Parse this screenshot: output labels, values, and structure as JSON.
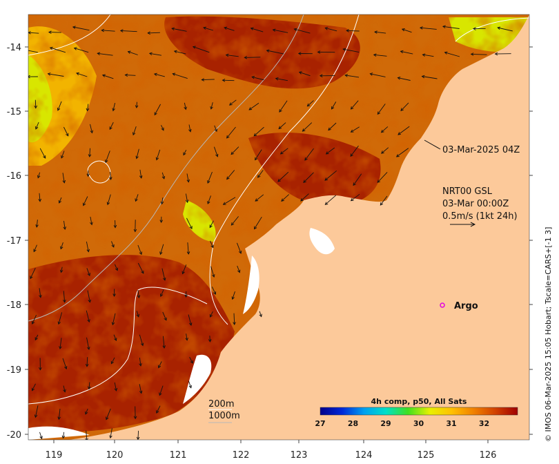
{
  "map": {
    "x_ticks": [
      "119",
      "120",
      "121",
      "122",
      "123",
      "124",
      "125",
      "126"
    ],
    "y_ticks": [
      "-14",
      "-15",
      "-16",
      "-17",
      "-18",
      "-19",
      "-20"
    ],
    "colors": {
      "land": "#fcc99a",
      "ocean_warm": "#d06a08",
      "ocean_hot": "#a82200",
      "ocean_cool": "#f2b400",
      "ocean_cold": "#d8e600",
      "contour": "#ffffff",
      "contour_deep": "#b8b8b8",
      "argo": "#e000e0"
    }
  },
  "annotations": {
    "timestamp": "03-Mar-2025 04Z",
    "current_source": "NRT00 GSL",
    "current_time": "03-Mar 00:00Z",
    "current_scale": "0.5m/s (1kt 24h)",
    "argo_label": "Argo",
    "isobath_200": "200m",
    "isobath_1000": "1000m",
    "credit": "© IMOS 06-Mar-2025 15:05 Hobart; Tscale=CARS+[-1 3]"
  },
  "colorbar": {
    "title": "4h comp, p50, All Sats",
    "ticks": [
      "27",
      "28",
      "29",
      "30",
      "31",
      "32"
    ],
    "stops": [
      "#00008b",
      "#0028d8",
      "#00a0f0",
      "#00e0c8",
      "#40e020",
      "#e8f000",
      "#ffc000",
      "#f08000",
      "#d04000",
      "#a00000"
    ]
  }
}
